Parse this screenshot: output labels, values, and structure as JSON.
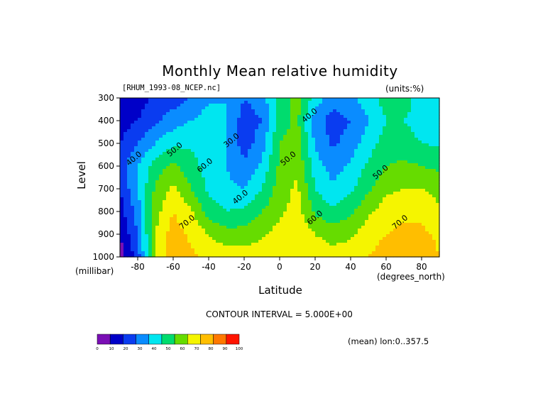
{
  "chart_data": {
    "type": "heatmap",
    "title": "Monthly Mean relative humidity",
    "subtitle_left": "[RHUM_1993-08_NCEP.nc]",
    "subtitle_right": "(units:%)",
    "xlabel": "Latitude",
    "xunit": "(degrees_north)",
    "ylabel": "Level",
    "yunit": "(millibar)",
    "xlim": [
      -90,
      90
    ],
    "ylim": [
      1000,
      300
    ],
    "x_ticks": [
      -80,
      -60,
      -40,
      -20,
      0,
      20,
      40,
      60,
      80
    ],
    "x_tick_labels": [
      "-80",
      "-60",
      "-40",
      "-20",
      "0",
      "20",
      "40",
      "60",
      "80"
    ],
    "y_ticks": [
      300,
      400,
      500,
      600,
      700,
      800,
      900,
      1000
    ],
    "y_tick_labels": [
      "300",
      "400",
      "500",
      "600",
      "700",
      "800",
      "900",
      "1000"
    ],
    "contour_interval": "CONTOUR INTERVAL = 5.000E+00",
    "note": "(mean) lon:0..357.5",
    "contour_labels": [
      "40.0",
      "50.0",
      "60.0",
      "30.0",
      "70.0",
      "40.0",
      "50.0",
      "40.0",
      "60.0",
      "50.0",
      "70.0"
    ],
    "colorbar": {
      "levels": [
        0,
        10,
        20,
        30,
        40,
        50,
        60,
        70,
        80,
        90,
        100
      ],
      "level_labels": [
        "0",
        "10",
        "20",
        "30",
        "40",
        "50",
        "60",
        "70",
        "80",
        "90",
        "100"
      ],
      "colors": [
        "#7a0fb5",
        "#0000c8",
        "#0a3cf0",
        "#0a8cff",
        "#00e6f0",
        "#00dc6e",
        "#66dc00",
        "#f5f500",
        "#ffbe00",
        "#ff7800",
        "#ff1400"
      ]
    },
    "latitudes": [
      -90,
      -80,
      -70,
      -60,
      -50,
      -40,
      -30,
      -20,
      -10,
      0,
      10,
      20,
      30,
      40,
      50,
      60,
      70,
      80,
      90
    ],
    "levels_mb": [
      300,
      400,
      500,
      600,
      700,
      800,
      900,
      1000
    ],
    "values": [
      [
        10,
        15,
        22,
        25,
        30,
        38,
        40,
        30,
        35,
        55,
        65,
        45,
        35,
        38,
        45,
        55,
        55,
        45,
        40
      ],
      [
        15,
        20,
        28,
        35,
        40,
        45,
        40,
        25,
        30,
        55,
        62,
        35,
        25,
        30,
        40,
        50,
        50,
        45,
        40
      ],
      [
        20,
        30,
        40,
        48,
        48,
        45,
        40,
        25,
        35,
        60,
        65,
        38,
        28,
        35,
        45,
        55,
        55,
        50,
        48
      ],
      [
        25,
        40,
        55,
        62,
        55,
        45,
        40,
        32,
        42,
        62,
        68,
        45,
        35,
        42,
        52,
        60,
        62,
        60,
        58
      ],
      [
        20,
        40,
        62,
        72,
        60,
        48,
        42,
        40,
        50,
        65,
        72,
        50,
        42,
        48,
        58,
        68,
        70,
        70,
        66
      ],
      [
        15,
        35,
        66,
        80,
        72,
        55,
        50,
        52,
        60,
        68,
        74,
        58,
        52,
        58,
        68,
        75,
        78,
        78,
        72
      ],
      [
        10,
        30,
        70,
        85,
        78,
        70,
        64,
        64,
        68,
        74,
        78,
        70,
        66,
        68,
        76,
        80,
        82,
        82,
        78
      ],
      [
        5,
        25,
        72,
        88,
        82,
        78,
        75,
        75,
        76,
        78,
        80,
        76,
        74,
        76,
        80,
        84,
        86,
        86,
        80
      ]
    ]
  }
}
